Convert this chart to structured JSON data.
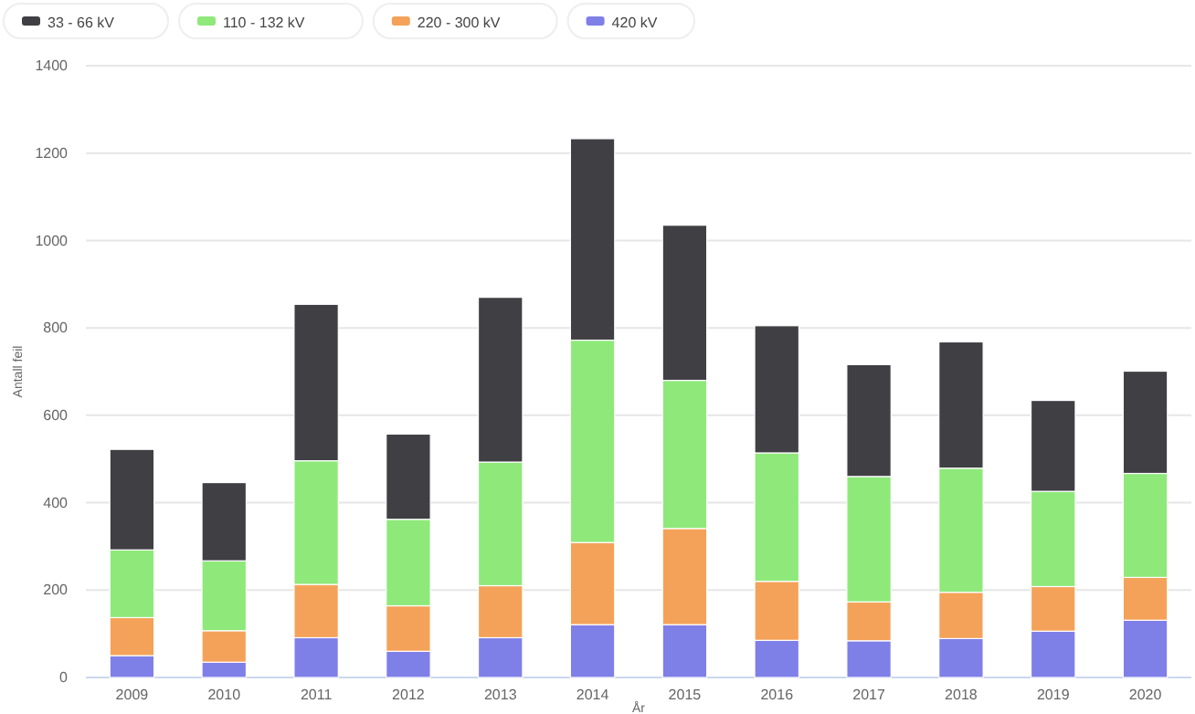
{
  "chart_data": {
    "type": "bar",
    "stacked": true,
    "xlabel": "År",
    "ylabel": "Antall feil",
    "categories": [
      "2009",
      "2010",
      "2011",
      "2012",
      "2013",
      "2014",
      "2015",
      "2016",
      "2017",
      "2018",
      "2019",
      "2020"
    ],
    "series": [
      {
        "name": "420 kV",
        "color": "#7f7fe8",
        "values": [
          50,
          35,
          91,
          60,
          91,
          121,
          121,
          85,
          84,
          89,
          106,
          131
        ]
      },
      {
        "name": "220 - 300 kV",
        "color": "#f4a259",
        "values": [
          87,
          72,
          122,
          104,
          119,
          188,
          220,
          135,
          89,
          106,
          102,
          98
        ]
      },
      {
        "name": "110 - 132 kV",
        "color": "#8ee97a",
        "values": [
          155,
          160,
          283,
          198,
          283,
          463,
          339,
          294,
          287,
          284,
          218,
          238
        ]
      },
      {
        "name": "33 - 66 kV",
        "color": "#3f3f44",
        "values": [
          230,
          179,
          358,
          195,
          377,
          461,
          355,
          291,
          256,
          289,
          208,
          234
        ]
      }
    ],
    "ylim": [
      0,
      1400
    ],
    "yticks": [
      0,
      200,
      400,
      600,
      800,
      1000,
      1200,
      1400
    ],
    "grid": "y",
    "legend": "top left"
  }
}
